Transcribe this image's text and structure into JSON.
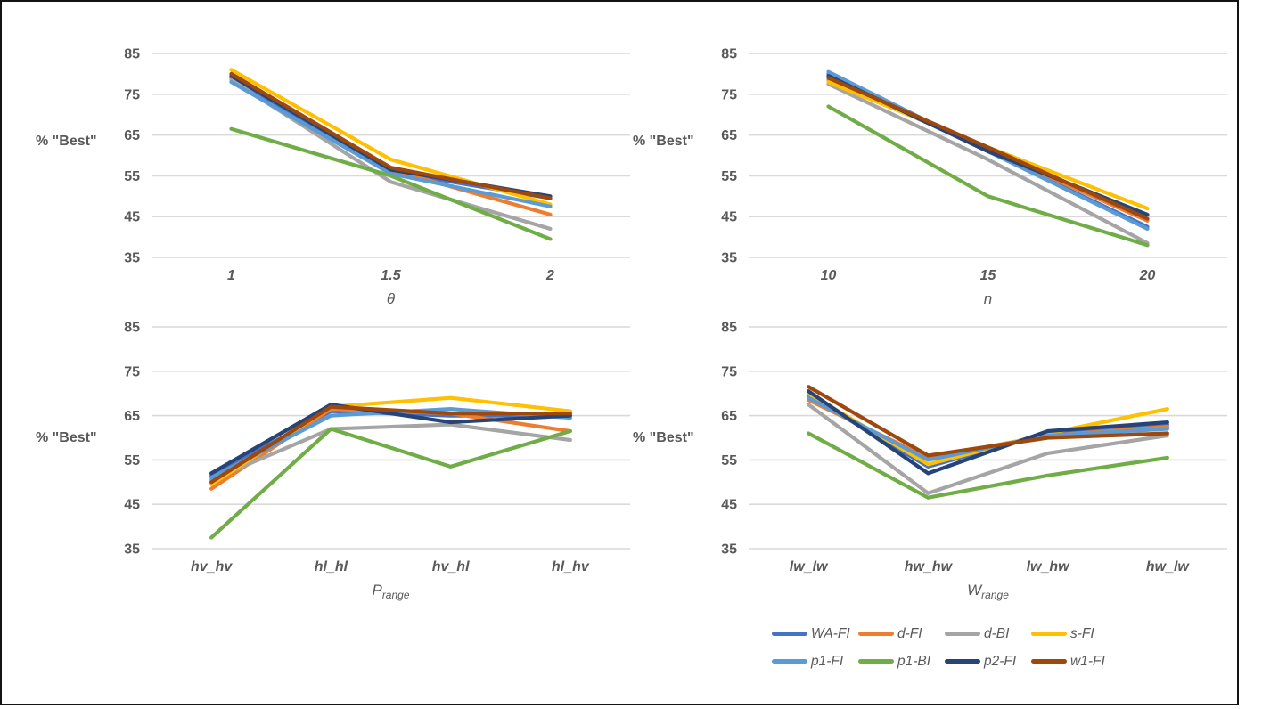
{
  "figure": {
    "ylabel": "% \"Best\"",
    "text_color": "#595959",
    "gridline_color": "#D9D9D9",
    "frame_color": "#141414"
  },
  "chart_data": [
    {
      "type": "line",
      "title": "",
      "ylabel": "% \"Best\"",
      "xlabel": "θ",
      "xlabel_sub": "",
      "categories": [
        "1",
        "1.5",
        "2"
      ],
      "ylim": [
        35,
        85
      ],
      "yticks": [
        85,
        75,
        65,
        55,
        45,
        35
      ],
      "grid": "horizontal",
      "legend_position": "none",
      "series": [
        {
          "name": "WA-FI",
          "color": "#4472C4",
          "values": [
            79,
            56,
            49.5
          ]
        },
        {
          "name": "d-FI",
          "color": "#ED7D31",
          "values": [
            80,
            56.5,
            45.5
          ]
        },
        {
          "name": "d-BI",
          "color": "#A5A5A5",
          "values": [
            78.5,
            53.5,
            42
          ]
        },
        {
          "name": "s-FI",
          "color": "#FFC000",
          "values": [
            81,
            59,
            48
          ]
        },
        {
          "name": "p1-FI",
          "color": "#5B9BD5",
          "values": [
            78,
            55.5,
            47.5
          ]
        },
        {
          "name": "p1-BI",
          "color": "#70AD47",
          "values": [
            66.5,
            55,
            39.5
          ]
        },
        {
          "name": "p2-FI",
          "color": "#264478",
          "values": [
            79.5,
            56.5,
            50
          ]
        },
        {
          "name": "w1-FI",
          "color": "#9E480E",
          "values": [
            80,
            57,
            49.5
          ]
        }
      ]
    },
    {
      "type": "line",
      "title": "",
      "ylabel": "% \"Best\"",
      "xlabel": "n",
      "xlabel_sub": "",
      "categories": [
        "10",
        "15",
        "20"
      ],
      "ylim": [
        35,
        85
      ],
      "yticks": [
        85,
        75,
        65,
        55,
        45,
        35
      ],
      "grid": "horizontal",
      "legend_position": "none",
      "series": [
        {
          "name": "WA-FI",
          "color": "#4472C4",
          "values": [
            80,
            61,
            42.5
          ]
        },
        {
          "name": "d-FI",
          "color": "#ED7D31",
          "values": [
            78.5,
            61.5,
            44
          ]
        },
        {
          "name": "d-BI",
          "color": "#A5A5A5",
          "values": [
            77.5,
            59,
            38.5
          ]
        },
        {
          "name": "s-FI",
          "color": "#FFC000",
          "values": [
            78,
            62,
            47
          ]
        },
        {
          "name": "p1-FI",
          "color": "#5B9BD5",
          "values": [
            80.5,
            61,
            42
          ]
        },
        {
          "name": "p1-BI",
          "color": "#70AD47",
          "values": [
            72,
            50,
            38
          ]
        },
        {
          "name": "p2-FI",
          "color": "#264478",
          "values": [
            79.5,
            61,
            45.5
          ]
        },
        {
          "name": "w1-FI",
          "color": "#9E480E",
          "values": [
            79,
            62,
            44.5
          ]
        }
      ]
    },
    {
      "type": "line",
      "title": "",
      "ylabel": "% \"Best\"",
      "xlabel": "P",
      "xlabel_sub": "range",
      "categories": [
        "hv_hv",
        "hl_hl",
        "hv_hl",
        "hl_hv"
      ],
      "ylim": [
        35,
        85
      ],
      "yticks": [
        85,
        75,
        65,
        55,
        45,
        35
      ],
      "grid": "horizontal",
      "legend_position": "none",
      "series": [
        {
          "name": "WA-FI",
          "color": "#4472C4",
          "values": [
            51.5,
            66,
            65,
            65
          ]
        },
        {
          "name": "d-FI",
          "color": "#ED7D31",
          "values": [
            48.5,
            66.5,
            65.5,
            61.5
          ]
        },
        {
          "name": "d-BI",
          "color": "#A5A5A5",
          "values": [
            50.5,
            62,
            63,
            59.5
          ]
        },
        {
          "name": "s-FI",
          "color": "#FFC000",
          "values": [
            49.5,
            67,
            69,
            66
          ]
        },
        {
          "name": "p1-FI",
          "color": "#5B9BD5",
          "values": [
            51,
            65,
            66.5,
            64.5
          ]
        },
        {
          "name": "p1-BI",
          "color": "#70AD47",
          "values": [
            37.5,
            62,
            53.5,
            61.5
          ]
        },
        {
          "name": "p2-FI",
          "color": "#264478",
          "values": [
            52,
            67.5,
            63.5,
            65
          ]
        },
        {
          "name": "w1-FI",
          "color": "#9E480E",
          "values": [
            50,
            67,
            65.5,
            65.5
          ]
        }
      ]
    },
    {
      "type": "line",
      "title": "",
      "ylabel": "% \"Best\"",
      "xlabel": "W",
      "xlabel_sub": "range",
      "categories": [
        "lw_lw",
        "hw_hw",
        "lw_hw",
        "hw_lw"
      ],
      "ylim": [
        35,
        85
      ],
      "yticks": [
        85,
        75,
        65,
        55,
        45,
        35
      ],
      "grid": "horizontal",
      "legend_position": "none",
      "series": [
        {
          "name": "WA-FI",
          "color": "#4472C4",
          "values": [
            69.5,
            53.5,
            61,
            63
          ]
        },
        {
          "name": "d-FI",
          "color": "#ED7D31",
          "values": [
            68.5,
            55.5,
            60.5,
            62.5
          ]
        },
        {
          "name": "d-BI",
          "color": "#A5A5A5",
          "values": [
            67.5,
            47.5,
            56.5,
            60.5
          ]
        },
        {
          "name": "s-FI",
          "color": "#FFC000",
          "values": [
            70,
            54,
            61,
            66.5
          ]
        },
        {
          "name": "p1-FI",
          "color": "#5B9BD5",
          "values": [
            69,
            55,
            60.5,
            62
          ]
        },
        {
          "name": "p1-BI",
          "color": "#70AD47",
          "values": [
            61,
            46.5,
            51.5,
            55.5
          ]
        },
        {
          "name": "p2-FI",
          "color": "#264478",
          "values": [
            70.5,
            52,
            61.5,
            63.5
          ]
        },
        {
          "name": "w1-FI",
          "color": "#9E480E",
          "values": [
            71.5,
            56,
            60,
            61
          ]
        }
      ]
    }
  ],
  "legend": {
    "items": [
      {
        "label": "WA-FI",
        "color": "#4472C4"
      },
      {
        "label": "d-FI",
        "color": "#ED7D31"
      },
      {
        "label": "d-BI",
        "color": "#A5A5A5"
      },
      {
        "label": "s-FI",
        "color": "#FFC000"
      },
      {
        "label": "p1-FI",
        "color": "#5B9BD5"
      },
      {
        "label": "p1-BI",
        "color": "#70AD47"
      },
      {
        "label": "p2-FI",
        "color": "#264478"
      },
      {
        "label": "w1-FI",
        "color": "#9E480E"
      }
    ]
  }
}
